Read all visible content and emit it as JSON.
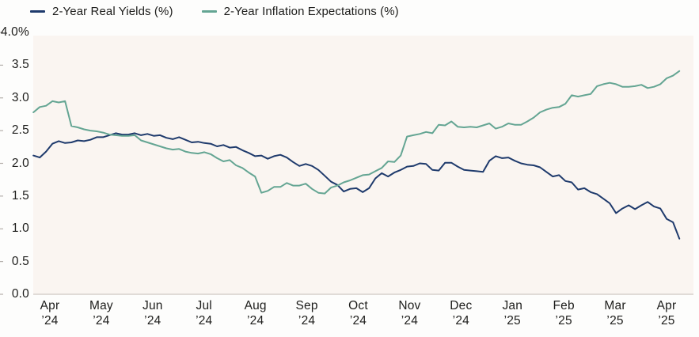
{
  "legend": {
    "items": [
      {
        "label": "2-Year Real Yields (%)",
        "color": "#1e3a6c"
      },
      {
        "label": "2-Year Inflation Expectations (%)",
        "color": "#64a593"
      }
    ]
  },
  "chart_data": {
    "type": "line",
    "title": "",
    "grid": false,
    "legend_position": "top",
    "plot_background": "#faf5f1",
    "page_background": "#fdfdfc",
    "axis_line_color": "#d6d0cc",
    "tick_color": "#b5afab",
    "text_color": "#1d1d1b",
    "x": {
      "tick_labels": [
        [
          "Apr",
          "’24"
        ],
        [
          "May",
          "’24"
        ],
        [
          "Jun",
          "’24"
        ],
        [
          "Jul",
          "’24"
        ],
        [
          "Aug",
          "’24"
        ],
        [
          "Sep",
          "’24"
        ],
        [
          "Oct",
          "’24"
        ],
        [
          "Nov",
          "’24"
        ],
        [
          "Dec",
          "’24"
        ],
        [
          "Jan",
          "’25"
        ],
        [
          "Feb",
          "’25"
        ],
        [
          "Mar",
          "’25"
        ],
        [
          "Apr",
          "’25"
        ]
      ]
    },
    "y": {
      "min": 0.0,
      "max": 4.0,
      "tick_step": 0.5,
      "tick_values": [
        4.0,
        3.5,
        3.0,
        2.5,
        2.0,
        1.5,
        1.0,
        0.5,
        0.0
      ],
      "tick_labels": [
        "4.0%",
        "3.5",
        "3.0",
        "2.5",
        "2.0",
        "1.5",
        "1.0",
        "0.5",
        "0.0"
      ]
    },
    "series": [
      {
        "name": "2-Year Real Yields (%)",
        "color": "#1e3a6c",
        "x_start_month": -0.32,
        "x_end_month": 12.25,
        "values": [
          2.12,
          2.09,
          2.18,
          2.3,
          2.34,
          2.31,
          2.32,
          2.35,
          2.34,
          2.36,
          2.4,
          2.4,
          2.43,
          2.46,
          2.44,
          2.44,
          2.46,
          2.43,
          2.45,
          2.42,
          2.43,
          2.39,
          2.37,
          2.4,
          2.36,
          2.32,
          2.33,
          2.31,
          2.3,
          2.26,
          2.28,
          2.24,
          2.25,
          2.2,
          2.16,
          2.11,
          2.12,
          2.07,
          2.11,
          2.13,
          2.09,
          2.02,
          1.96,
          1.99,
          1.96,
          1.9,
          1.81,
          1.72,
          1.67,
          1.57,
          1.61,
          1.62,
          1.56,
          1.62,
          1.77,
          1.85,
          1.8,
          1.86,
          1.9,
          1.95,
          1.96,
          2.0,
          1.99,
          1.9,
          1.89,
          2.01,
          2.01,
          1.95,
          1.9,
          1.89,
          1.88,
          1.87,
          2.04,
          2.11,
          2.08,
          2.09,
          2.04,
          2.0,
          1.98,
          1.97,
          1.94,
          1.87,
          1.8,
          1.82,
          1.73,
          1.71,
          1.6,
          1.62,
          1.56,
          1.53,
          1.46,
          1.39,
          1.24,
          1.31,
          1.36,
          1.3,
          1.36,
          1.41,
          1.34,
          1.31,
          1.15,
          1.1,
          0.85
        ]
      },
      {
        "name": "2-Year Inflation Expectations (%)",
        "color": "#64a593",
        "x_start_month": -0.32,
        "x_end_month": 12.25,
        "values": [
          2.78,
          2.86,
          2.88,
          2.95,
          2.93,
          2.95,
          2.57,
          2.55,
          2.52,
          2.5,
          2.49,
          2.47,
          2.44,
          2.43,
          2.42,
          2.42,
          2.43,
          2.35,
          2.32,
          2.29,
          2.26,
          2.23,
          2.21,
          2.22,
          2.18,
          2.16,
          2.15,
          2.17,
          2.14,
          2.08,
          2.03,
          2.05,
          1.97,
          1.93,
          1.86,
          1.8,
          1.55,
          1.58,
          1.64,
          1.64,
          1.7,
          1.66,
          1.66,
          1.69,
          1.61,
          1.55,
          1.54,
          1.63,
          1.66,
          1.71,
          1.74,
          1.78,
          1.82,
          1.83,
          1.88,
          1.93,
          2.03,
          2.02,
          2.12,
          2.41,
          2.43,
          2.45,
          2.48,
          2.46,
          2.59,
          2.58,
          2.64,
          2.56,
          2.55,
          2.56,
          2.55,
          2.58,
          2.61,
          2.53,
          2.56,
          2.61,
          2.59,
          2.59,
          2.64,
          2.7,
          2.78,
          2.82,
          2.85,
          2.86,
          2.91,
          3.04,
          3.02,
          3.04,
          3.06,
          3.18,
          3.21,
          3.23,
          3.21,
          3.17,
          3.17,
          3.18,
          3.2,
          3.15,
          3.17,
          3.21,
          3.3,
          3.34,
          3.41
        ]
      }
    ]
  }
}
